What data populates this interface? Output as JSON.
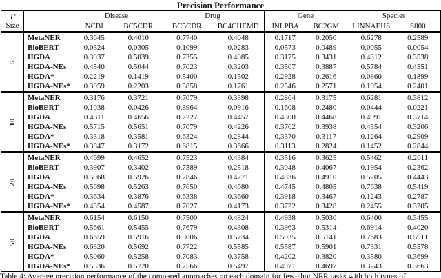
{
  "title": "Precision Performance",
  "corner": {
    "symbol": "T'",
    "label": "Size"
  },
  "columns": {
    "groups": [
      {
        "label": "Disease",
        "subs": [
          "NCBI",
          "BC5CDR"
        ]
      },
      {
        "label": "Drug",
        "subs": [
          "BC5CDR",
          "BC4CHEMD"
        ]
      },
      {
        "label": "Gene",
        "subs": [
          "JNLPBA",
          "BC2GM"
        ]
      },
      {
        "label": "Species",
        "subs": [
          "LINNAEUS",
          "S800"
        ]
      }
    ]
  },
  "row_groups": [
    {
      "size": "5",
      "rows": [
        {
          "method": "MetaNER",
          "values": [
            "0.3645",
            "0.4010",
            "0.7740",
            "0.4048",
            "0.1717",
            "0.2050",
            "0.6278",
            "0.2589"
          ]
        },
        {
          "method": "BioBERT",
          "values": [
            "0.0324",
            "0.0305",
            "0.1099",
            "0.0283",
            "0.0573",
            "0.0489",
            "0.0055",
            "0.0054"
          ]
        },
        {
          "method": "HGDA",
          "values": [
            "0.3937",
            "0.5039",
            "0.7355",
            "0.4085",
            "0.3175",
            "0.3431",
            "0.4312",
            "0.3538"
          ]
        },
        {
          "method": "HGDA-NEs",
          "values": [
            "0.4540",
            "0.5044",
            "0.7023",
            "0.3203",
            "0.3507",
            "0.3887",
            "0.5784",
            "0.4551"
          ]
        },
        {
          "method": "HGDA*",
          "values": [
            "0.2219",
            "0.1419",
            "0.5400",
            "0.1502",
            "0.2928",
            "0.2616",
            "0.0860",
            "0.1899"
          ]
        },
        {
          "method": "HGDA-NEs*",
          "values": [
            "0.3059",
            "0.2203",
            "0.5858",
            "0.1761",
            "0.2546",
            "0.2571",
            "0.1954",
            "0.2401"
          ]
        }
      ]
    },
    {
      "size": "10",
      "rows": [
        {
          "method": "MetaNER",
          "values": [
            "0.3176",
            "0.3721",
            "0.7079",
            "0.3398",
            "0.2864",
            "0.3175",
            "0.6281",
            "0.3812"
          ]
        },
        {
          "method": "BioBERT",
          "values": [
            "0.1038",
            "0.0426",
            "0.3964",
            "0.0916",
            "0.1608",
            "0.2480",
            "0.0444",
            "0.0221"
          ]
        },
        {
          "method": "HGDA",
          "values": [
            "0.4311",
            "0.4656",
            "0.7227",
            "0.4457",
            "0.4300",
            "0.4468",
            "0.4991",
            "0.3714"
          ]
        },
        {
          "method": "HGDA-NEs",
          "values": [
            "0.5715",
            "0.5651",
            "0.7079",
            "0.4226",
            "0.3762",
            "0.3938",
            "0.4354",
            "0.3206"
          ]
        },
        {
          "method": "HGDA*",
          "values": [
            "0.3318",
            "0.3581",
            "0.6324",
            "0.2844",
            "0.3370",
            "0.3117",
            "0.1264",
            "0.2909"
          ]
        },
        {
          "method": "HGDA-NEs*",
          "values": [
            "0.3847",
            "0.3172",
            "0.6815",
            "0.3666",
            "0.3113",
            "0.2824",
            "0.1452",
            "0.2844"
          ]
        }
      ]
    },
    {
      "size": "20",
      "rows": [
        {
          "method": "MetaNER",
          "values": [
            "0.4699",
            "0.4652",
            "0.7523",
            "0.4384",
            "0.3516",
            "0.3625",
            "0.5462",
            "0.2611"
          ]
        },
        {
          "method": "BioBERT",
          "values": [
            "0.3907",
            "0.3402",
            "0.7389",
            "0.2518",
            "0.3048",
            "0.4067",
            "0.1954",
            "0.2362"
          ]
        },
        {
          "method": "HGDA",
          "values": [
            "0.5968",
            "0.5926",
            "0.7846",
            "0.4771",
            "0.4836",
            "0.4910",
            "0.5205",
            "0.4443"
          ]
        },
        {
          "method": "HGDA-NEs",
          "values": [
            "0.5698",
            "0.5263",
            "0.7650",
            "0.4680",
            "0.4745",
            "0.4805",
            "0.7638",
            "0.5419"
          ]
        },
        {
          "method": "HGDA*",
          "values": [
            "0.3634",
            "0.3876",
            "0.6338",
            "0.3660",
            "0.3918",
            "0.3467",
            "0.1243",
            "0.2787"
          ]
        },
        {
          "method": "HGDA-NEs*",
          "values": [
            "0.4354",
            "0.4587",
            "0.7027",
            "0.4173",
            "0.3722",
            "0.3428",
            "0.2455",
            "0.3205"
          ]
        }
      ]
    },
    {
      "size": "50",
      "rows": [
        {
          "method": "MetaNER",
          "values": [
            "0.6154",
            "0.6150",
            "0.7500",
            "0.4824",
            "0.4938",
            "0.5030",
            "0.6400",
            "0.3455"
          ]
        },
        {
          "method": "BioBERT",
          "values": [
            "0.5661",
            "0.5455",
            "0.7679",
            "0.4308",
            "0.3963",
            "0.5314",
            "0.6914",
            "0.4020"
          ]
        },
        {
          "method": "HGDA",
          "values": [
            "0.6659",
            "0.5916",
            "0.8006",
            "0.5734",
            "0.5035",
            "0.5141",
            "0.7683",
            "0.5911"
          ]
        },
        {
          "method": "HGDA-NEs",
          "values": [
            "0.6320",
            "0.5692",
            "0.7722",
            "0.5585",
            "0.5587",
            "0.5901",
            "0.7331",
            "0.5578"
          ]
        },
        {
          "method": "HGDA*",
          "values": [
            "0.5060",
            "0.5258",
            "0.7083",
            "0.3758",
            "0.4202",
            "0.3820",
            "0.3580",
            "0.3699"
          ]
        },
        {
          "method": "HGDA-NEs*",
          "values": [
            "0.5536",
            "0.5720",
            "0.7566",
            "0.5497",
            "0.4971",
            "0.4697",
            "0.3243",
            "0.3663"
          ]
        }
      ]
    }
  ],
  "caption": "Table 4: Average precision performance of the compared approaches on each domain for few-shot NER tasks with both types of"
}
